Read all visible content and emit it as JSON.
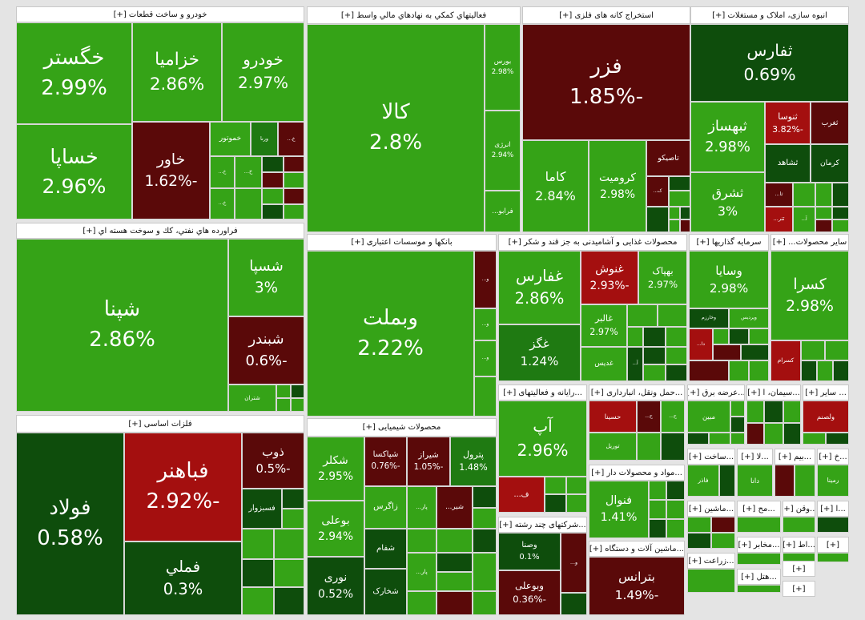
{
  "sectors": [
    {
      "title": "خودرو و ساخت قطعات [+]",
      "tiles": [
        {
          "name": "خگستر",
          "change": "2.99%"
        },
        {
          "name": "خزامیا",
          "change": "2.86%"
        },
        {
          "name": "خودرو",
          "change": "2.97%"
        },
        {
          "name": "خساپا",
          "change": "2.96%"
        },
        {
          "name": "خاور",
          "change": "-1.62%"
        },
        {
          "name": "خموتور"
        },
        {
          "name": "ورنا"
        },
        {
          "name": "خ..."
        },
        {
          "name": "خ..."
        },
        {
          "name": "خ..."
        },
        {
          "name": "خ..."
        }
      ]
    },
    {
      "title": "فراورده هاي نفتي، كك و سوخت هسته اي [+]",
      "tiles": [
        {
          "name": "شپنا",
          "change": "2.86%"
        },
        {
          "name": "شسپا",
          "change": "3%"
        },
        {
          "name": "شبندر",
          "change": "-0.6%"
        },
        {
          "name": "شتران"
        }
      ]
    },
    {
      "title": "فلزات اساسی [+]",
      "tiles": [
        {
          "name": "فولاد",
          "change": "0.58%"
        },
        {
          "name": "فباهنر",
          "change": "-2.92%"
        },
        {
          "name": "ذوب",
          "change": "-0.5%"
        },
        {
          "name": "فسبزوار"
        },
        {
          "name": "فملي",
          "change": "0.3%"
        }
      ]
    },
    {
      "title": "فعالیتهاي كمكي به نهادهاي مالي واسط [+]",
      "tiles": [
        {
          "name": "کالا",
          "change": "2.8%"
        },
        {
          "name": "بورس",
          "change": "2.98%"
        },
        {
          "name": "انرژی",
          "change": "2.94%"
        },
        {
          "name": "فرابو..."
        }
      ]
    },
    {
      "title": "استخراج کانه های فلزی [+]",
      "tiles": [
        {
          "name": "فزر",
          "change": "-1.85%"
        },
        {
          "name": "کاما",
          "change": "2.84%"
        },
        {
          "name": "کرومیت",
          "change": "2.98%"
        },
        {
          "name": "تاصیکو"
        },
        {
          "name": "ک..."
        }
      ]
    },
    {
      "title": "انبوه سازی، املاک و مستغلات [+]",
      "tiles": [
        {
          "name": "ثفارس",
          "change": "0.69%"
        },
        {
          "name": "ثبهساز",
          "change": "2.98%"
        },
        {
          "name": "ثشرق",
          "change": "3%"
        },
        {
          "name": "ثنوسا",
          "change": "-3.82%"
        },
        {
          "name": "ثغرب"
        },
        {
          "name": "ثشاهد"
        },
        {
          "name": "کرمان"
        },
        {
          "name": "ثا..."
        },
        {
          "name": "ثتر..."
        },
        {
          "name": "آ..."
        }
      ]
    },
    {
      "title": "بانکها و موسسات اعتباری [+]",
      "tiles": [
        {
          "name": "وبملت",
          "change": "2.22%"
        },
        {
          "name": "و..."
        },
        {
          "name": "و..."
        },
        {
          "name": "و..."
        }
      ]
    },
    {
      "title": "محصولات غذایی و آشامیدنی به جز قند و شکر [+]",
      "tiles": [
        {
          "name": "غفارس",
          "change": "2.86%"
        },
        {
          "name": "غگز",
          "change": "1.24%"
        },
        {
          "name": "غنوش",
          "change": "-2.93%"
        },
        {
          "name": "بهپاک",
          "change": "2.97%"
        },
        {
          "name": "غالبر",
          "change": "2.97%"
        },
        {
          "name": "غدیس"
        },
        {
          "name": "آ..."
        }
      ]
    },
    {
      "title": "سرمایه گذاریها [+]",
      "tiles": [
        {
          "name": "وسایا",
          "change": "2.98%"
        },
        {
          "name": "وخارزم"
        },
        {
          "name": "وپردیس"
        },
        {
          "name": "دا..."
        }
      ]
    },
    {
      "title": "سایر محصولات... [+]",
      "tiles": [
        {
          "name": "کسرا",
          "change": "2.98%"
        },
        {
          "name": "کسرام"
        }
      ]
    },
    {
      "title": "محصولات شیمیایی [+]",
      "tiles": [
        {
          "name": "شکلر",
          "change": "2.95%"
        },
        {
          "name": "بوعلی",
          "change": "2.94%"
        },
        {
          "name": "نوری",
          "change": "0.52%"
        },
        {
          "name": "شپاکسا",
          "change": "-0.76%"
        },
        {
          "name": "شیراز",
          "change": "-1.05%"
        },
        {
          "name": "پترول",
          "change": "1.48%"
        },
        {
          "name": "زاگرس"
        },
        {
          "name": "پار..."
        },
        {
          "name": "شیر..."
        },
        {
          "name": "شفام"
        },
        {
          "name": "شخارک"
        },
        {
          "name": "پار..."
        }
      ]
    },
    {
      "title": "...رایانه و فعالیتهای [+]",
      "tiles": [
        {
          "name": "آپ",
          "change": "2.96%"
        },
        {
          "name": "ف..."
        }
      ]
    },
    {
      "title": "...شرکتهای چند رشته [+]",
      "tiles": [
        {
          "name": "وصنا",
          "change": "0.1%"
        },
        {
          "name": "وبوعلی",
          "change": "-0.36%"
        },
        {
          "name": "و..."
        }
      ]
    },
    {
      "title": "...حمل ونقل، انبارداری [+]",
      "tiles": [
        {
          "name": "حسینا"
        },
        {
          "name": "ح..."
        },
        {
          "name": "ح..."
        },
        {
          "name": "توریل"
        }
      ]
    },
    {
      "title": "...مواد و محصولات دار [+]",
      "tiles": [
        {
          "name": "فنوال",
          "change": "1.41%"
        }
      ]
    },
    {
      "title": "...ماشین آلات و دستگاه [+]",
      "tiles": [
        {
          "name": "بترانس",
          "change": "-1.49%"
        }
      ]
    },
    {
      "title": "...عرضه برق [+]",
      "tiles": [
        {
          "name": "مبین"
        }
      ]
    },
    {
      "title": "...سیمان، ا [+]",
      "tiles": []
    },
    {
      "title": "... سایر [+]",
      "tiles": [
        {
          "name": "ولصنم"
        }
      ]
    },
    {
      "title": "...ساخت [+]",
      "tiles": [
        {
          "name": "فاذر"
        }
      ]
    },
    {
      "title": "...لا [+]",
      "tiles": [
        {
          "name": "دانا"
        }
      ]
    },
    {
      "title": "...بیم [+]",
      "tiles": []
    },
    {
      "title": "...خ [+]",
      "tiles": [
        {
          "name": "رمینا"
        }
      ]
    },
    {
      "title": "...ماشین [+]",
      "tiles": []
    },
    {
      "title": "...مح [+]",
      "tiles": []
    },
    {
      "title": "...وقن [+]",
      "tiles": []
    },
    {
      "title": "...ا [+]",
      "tiles": []
    },
    {
      "title": "...زراعت [+]",
      "tiles": []
    },
    {
      "title": "...مخابر [+]",
      "tiles": []
    },
    {
      "title": "...اط [+]",
      "tiles": []
    },
    {
      "title": "...هتل [+]",
      "tiles": []
    },
    {
      "title": "[+]",
      "tiles": []
    },
    {
      "title": "[+]",
      "tiles": []
    },
    {
      "title": "[+]",
      "tiles": []
    }
  ]
}
